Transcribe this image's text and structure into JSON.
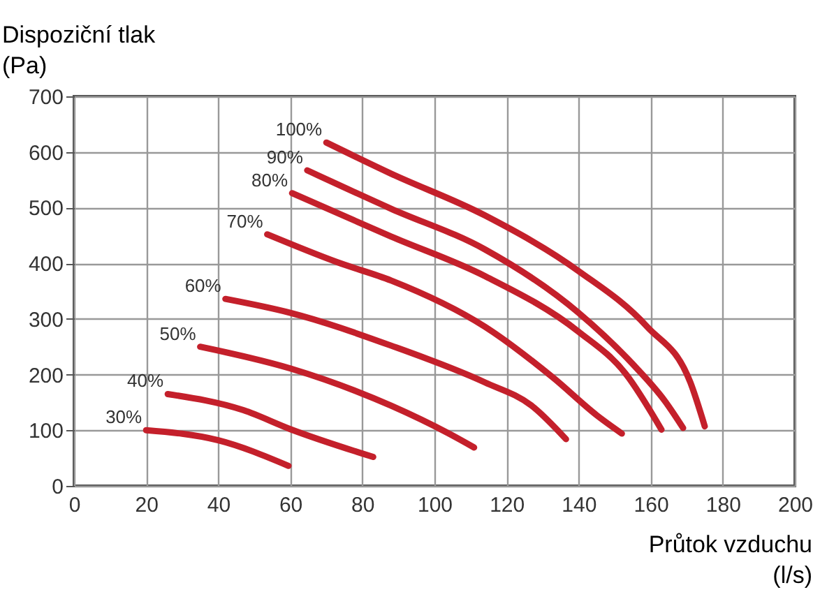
{
  "chart_data": {
    "type": "line",
    "xlabel": "Průtok vzduchu\n(l/s)",
    "ylabel": "Dispoziční tlak\n(Pa)",
    "xlim": [
      0,
      200
    ],
    "xticks": [
      0,
      20,
      40,
      60,
      80,
      100,
      120,
      140,
      160,
      180,
      200
    ],
    "ylim": [
      0,
      700
    ],
    "yticks": [
      0,
      100,
      200,
      300,
      400,
      500,
      600,
      700
    ],
    "grid": true,
    "marker": "none",
    "line_style": "solid",
    "series": [
      {
        "name": "30%",
        "color": "#c4202b",
        "x": [
          20,
          40,
          59.5
        ],
        "values": [
          100,
          82,
          36
        ]
      },
      {
        "name": "40%",
        "color": "#c4202b",
        "x": [
          26,
          47,
          60,
          83
        ],
        "values": [
          165,
          136,
          102,
          52
        ]
      },
      {
        "name": "50%",
        "color": "#c4202b",
        "x": [
          35,
          60,
          88,
          104,
          111
        ],
        "values": [
          250,
          211,
          144,
          94,
          69
        ]
      },
      {
        "name": "60%",
        "color": "#c4202b",
        "x": [
          42,
          60,
          88,
          114,
          127,
          136.5
        ],
        "values": [
          336,
          311,
          252,
          186,
          144,
          84
        ]
      },
      {
        "name": "70%",
        "color": "#c4202b",
        "x": [
          53.6,
          73,
          88,
          114,
          133,
          145,
          152
        ],
        "values": [
          452,
          402,
          369,
          286,
          194,
          127,
          94
        ]
      },
      {
        "name": "80%",
        "color": "#c4202b",
        "x": [
          60.5,
          88,
          114,
          140,
          153,
          163
        ],
        "values": [
          526,
          448,
          377,
          277,
          202,
          101
        ]
      },
      {
        "name": "90%",
        "color": "#c4202b",
        "x": [
          64.7,
          88,
          114,
          140,
          155,
          164,
          169
        ],
        "values": [
          567,
          498,
          425,
          311,
          219,
          152,
          104
        ]
      },
      {
        "name": "100%",
        "color": "#c4202b",
        "x": [
          70,
          88,
          114,
          140,
          159,
          171,
          175
        ],
        "values": [
          617,
          561,
          486,
          386,
          286,
          186,
          107
        ]
      }
    ]
  }
}
